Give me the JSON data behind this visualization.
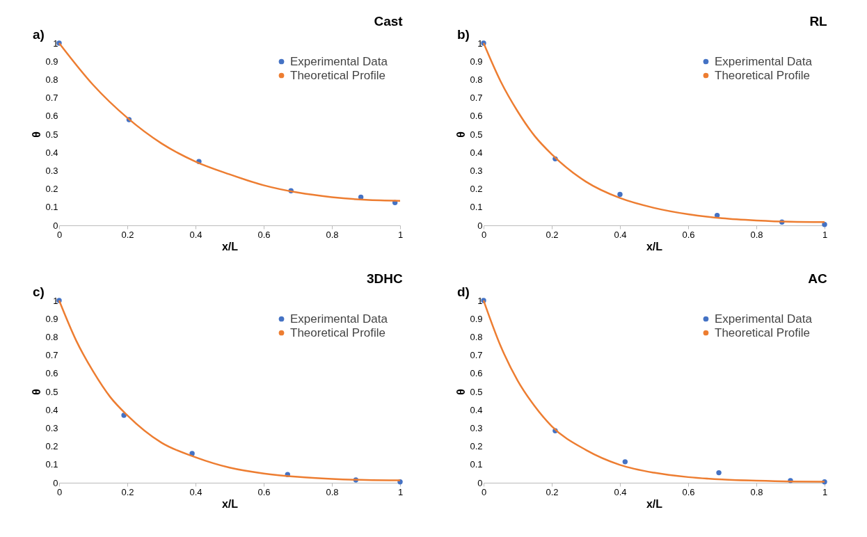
{
  "chart_data": [
    {
      "type": "scatter",
      "title": "Cast",
      "annotations": [
        "a)"
      ],
      "xlabel": "x/L",
      "ylabel": "θ",
      "xlim": [
        0,
        1
      ],
      "xticks": [
        0,
        0.2,
        0.4,
        0.6,
        0.8,
        1
      ],
      "ylim": [
        0,
        1
      ],
      "yticks": [
        0,
        0.1,
        0.2,
        0.3,
        0.4,
        0.5,
        0.6,
        0.7,
        0.8,
        0.9,
        1
      ],
      "legend": "top right",
      "series": [
        {
          "name": "Experimental Data",
          "type": "scatter",
          "marker": "circle",
          "color": "#4472c4",
          "x": [
            0,
            0.205,
            0.41,
            0.68,
            0.885,
            0.985
          ],
          "values": [
            1,
            0.58,
            0.35,
            0.19,
            0.155,
            0.125
          ]
        },
        {
          "name": "Theoretical Profile",
          "type": "line",
          "color": "#ed7d31",
          "x": [
            0,
            0.1,
            0.2,
            0.3,
            0.4,
            0.5,
            0.6,
            0.7,
            0.8,
            0.9,
            1
          ],
          "values": [
            1,
            0.77,
            0.59,
            0.45,
            0.35,
            0.28,
            0.22,
            0.18,
            0.155,
            0.14,
            0.135
          ]
        }
      ]
    },
    {
      "type": "scatter",
      "title": "RL",
      "annotations": [
        "b)"
      ],
      "xlabel": "x/L",
      "ylabel": "θ",
      "xlim": [
        0,
        1
      ],
      "xticks": [
        0,
        0.2,
        0.4,
        0.6,
        0.8,
        1
      ],
      "ylim": [
        0,
        1
      ],
      "yticks": [
        0,
        0.1,
        0.2,
        0.3,
        0.4,
        0.5,
        0.6,
        0.7,
        0.8,
        0.9,
        1
      ],
      "legend": "top right",
      "series": [
        {
          "name": "Experimental Data",
          "type": "scatter",
          "marker": "circle",
          "color": "#4472c4",
          "x": [
            0,
            0.21,
            0.4,
            0.685,
            0.875,
            1
          ],
          "values": [
            1,
            0.365,
            0.17,
            0.055,
            0.018,
            0.005
          ]
        },
        {
          "name": "Theoretical Profile",
          "type": "line",
          "color": "#ed7d31",
          "x": [
            0,
            0.05,
            0.1,
            0.15,
            0.2,
            0.3,
            0.4,
            0.5,
            0.6,
            0.7,
            0.8,
            0.9,
            1
          ],
          "values": [
            1,
            0.79,
            0.625,
            0.49,
            0.39,
            0.24,
            0.15,
            0.096,
            0.061,
            0.039,
            0.027,
            0.02,
            0.018
          ]
        }
      ]
    },
    {
      "type": "scatter",
      "title": "3DHC",
      "annotations": [
        "c)"
      ],
      "xlabel": "x/L",
      "ylabel": "θ",
      "xlim": [
        0,
        1
      ],
      "xticks": [
        0,
        0.2,
        0.4,
        0.6,
        0.8,
        1
      ],
      "ylim": [
        0,
        1
      ],
      "yticks": [
        0,
        0.1,
        0.2,
        0.3,
        0.4,
        0.5,
        0.6,
        0.7,
        0.8,
        0.9,
        1
      ],
      "legend": "top right",
      "series": [
        {
          "name": "Experimental Data",
          "type": "scatter",
          "marker": "circle",
          "color": "#4472c4",
          "x": [
            0,
            0.19,
            0.39,
            0.67,
            0.87,
            1
          ],
          "values": [
            1,
            0.37,
            0.16,
            0.045,
            0.015,
            0.005
          ]
        },
        {
          "name": "Theoretical Profile",
          "type": "line",
          "color": "#ed7d31",
          "x": [
            0,
            0.05,
            0.1,
            0.15,
            0.2,
            0.3,
            0.4,
            0.5,
            0.6,
            0.7,
            0.8,
            0.9,
            1
          ],
          "values": [
            1,
            0.78,
            0.61,
            0.47,
            0.37,
            0.22,
            0.14,
            0.083,
            0.051,
            0.032,
            0.021,
            0.015,
            0.013
          ]
        }
      ]
    },
    {
      "type": "scatter",
      "title": "AC",
      "annotations": [
        "d)"
      ],
      "xlabel": "x/L",
      "ylabel": "θ",
      "xlim": [
        0,
        1
      ],
      "xticks": [
        0,
        0.2,
        0.4,
        0.6,
        0.8,
        1
      ],
      "ylim": [
        0,
        1
      ],
      "yticks": [
        0,
        0.1,
        0.2,
        0.3,
        0.4,
        0.5,
        0.6,
        0.7,
        0.8,
        0.9,
        1
      ],
      "legend": "top right",
      "series": [
        {
          "name": "Experimental Data",
          "type": "scatter",
          "marker": "circle",
          "color": "#4472c4",
          "x": [
            0,
            0.21,
            0.415,
            0.69,
            0.9,
            1
          ],
          "values": [
            1,
            0.285,
            0.115,
            0.055,
            0.012,
            0.005
          ]
        },
        {
          "name": "Theoretical Profile",
          "type": "line",
          "color": "#ed7d31",
          "x": [
            0,
            0.05,
            0.1,
            0.15,
            0.2,
            0.3,
            0.4,
            0.5,
            0.6,
            0.7,
            0.8,
            0.9,
            1
          ],
          "values": [
            1,
            0.75,
            0.56,
            0.42,
            0.31,
            0.18,
            0.098,
            0.055,
            0.031,
            0.018,
            0.011,
            0.007,
            0.006
          ]
        }
      ]
    }
  ]
}
